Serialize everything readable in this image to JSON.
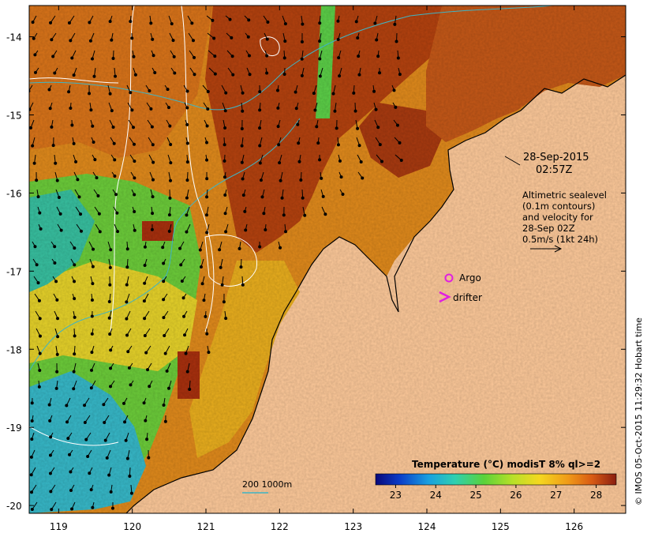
{
  "map": {
    "lat_ticks": [
      "-14",
      "-15",
      "-16",
      "-17",
      "-18",
      "-19",
      "-20"
    ],
    "lon_ticks": [
      "119",
      "120",
      "121",
      "122",
      "123",
      "124",
      "125",
      "126"
    ],
    "lat_range": [
      -20.1,
      -13.6
    ],
    "lon_range": [
      118.6,
      126.7
    ]
  },
  "annotations": {
    "date": "28-Sep-2015",
    "time": "02:57Z",
    "altimetry_lines": [
      "Altimetric sealevel",
      "(0.1m contours)",
      "and velocity for",
      "28-Sep 02Z",
      "0.5m/s (1kt 24h)"
    ],
    "argo_label": "Argo",
    "drifter_label": "drifter",
    "depth_label": "200  1000m"
  },
  "colorbar": {
    "title": "Temperature (°C) modisT 8% ql>=2",
    "ticks": [
      "23",
      "24",
      "25",
      "26",
      "27",
      "28"
    ],
    "range": [
      22.5,
      28.5
    ]
  },
  "credit": "© IMOS 05-Oct-2015 11:29:32 Hobart time",
  "colors": {
    "land": "#fdc99a",
    "warm": "#b54412",
    "mid": "#e88e18",
    "cool": "#6fcf3a",
    "cold": "#28b6d8",
    "argo": "#e020e0",
    "bathy": "#3fb4c4"
  }
}
